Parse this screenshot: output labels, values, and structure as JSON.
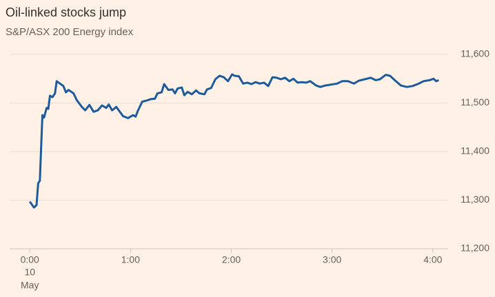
{
  "chart_data": {
    "type": "line",
    "title": "Oil-linked stocks jump",
    "subtitle": "S&P/ASX 200 Energy index",
    "x": [
      0,
      2.5,
      4,
      5,
      6,
      7.5,
      8.5,
      10,
      11,
      12,
      13.5,
      15,
      16,
      18,
      20,
      21.5,
      23,
      26,
      28,
      31,
      33,
      35.5,
      38,
      40.5,
      43,
      45.5,
      47,
      49,
      51.5,
      53,
      55.5,
      58.5,
      61.5,
      63,
      64.5,
      67,
      69.5,
      72,
      74.5,
      76,
      78.5,
      80,
      82.5,
      85,
      86.5,
      88,
      90.5,
      92,
      94,
      96.5,
      99,
      101,
      104,
      105.5,
      108,
      110.5,
      113,
      115.5,
      118,
      120.5,
      122,
      124.5,
      127,
      129.5,
      132,
      134.5,
      137,
      139.5,
      142,
      144.5,
      147,
      149.5,
      152,
      154.5,
      157,
      159.5,
      162,
      164.5,
      167,
      170.5,
      173,
      176,
      179.5,
      183,
      186,
      189.5,
      193,
      196,
      199.5,
      203,
      206,
      208.5,
      212,
      214.5,
      218,
      221,
      224.5,
      228,
      231,
      234.5,
      238,
      240.5,
      242,
      243.5
    ],
    "series": [
      {
        "name": "S&P/ASX 200 Energy",
        "color": "#1d5a9c",
        "values": [
          11297,
          11285,
          11290,
          11335,
          11340,
          11475,
          11470,
          11490,
          11488,
          11515,
          11512,
          11520,
          11545,
          11540,
          11535,
          11522,
          11527,
          11520,
          11506,
          11492,
          11485,
          11496,
          11482,
          11485,
          11495,
          11490,
          11497,
          11485,
          11492,
          11485,
          11473,
          11469,
          11475,
          11472,
          11485,
          11503,
          11505,
          11508,
          11509,
          11520,
          11522,
          11539,
          11527,
          11528,
          11520,
          11530,
          11532,
          11516,
          11523,
          11518,
          11526,
          11520,
          11518,
          11528,
          11531,
          11549,
          11556,
          11553,
          11545,
          11559,
          11556,
          11555,
          11540,
          11542,
          11539,
          11543,
          11540,
          11542,
          11535,
          11553,
          11552,
          11549,
          11552,
          11545,
          11550,
          11542,
          11543,
          11542,
          11545,
          11536,
          11533,
          11536,
          11538,
          11540,
          11545,
          11545,
          11540,
          11546,
          11549,
          11552,
          11547,
          11549,
          11558,
          11556,
          11545,
          11536,
          11533,
          11535,
          11539,
          11545,
          11547,
          11550,
          11545,
          11547
        ]
      }
    ],
    "xlim": [
      -12,
      245
    ],
    "xticks": [
      {
        "value": 0,
        "label": "0:00"
      },
      {
        "value": 60,
        "label": "1:00"
      },
      {
        "value": 120,
        "label": "2:00"
      },
      {
        "value": 180,
        "label": "3:00"
      },
      {
        "value": 240,
        "label": "4:00"
      }
    ],
    "x_date_label": [
      "10",
      "May"
    ],
    "ylim": [
      11200,
      11600
    ],
    "yticks": [
      {
        "value": 11200,
        "label": "11,200"
      },
      {
        "value": 11300,
        "label": "11,300"
      },
      {
        "value": 11400,
        "label": "11,400"
      },
      {
        "value": 11500,
        "label": "11,500"
      },
      {
        "value": 11600,
        "label": "11,600"
      }
    ],
    "grid": true
  }
}
